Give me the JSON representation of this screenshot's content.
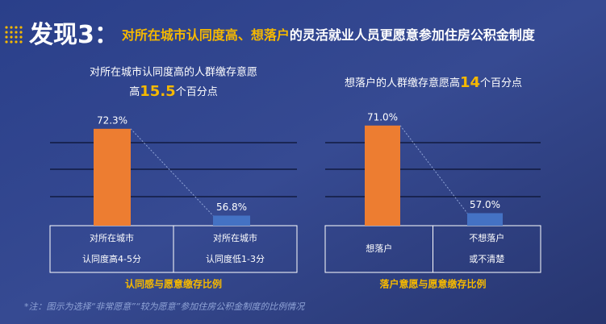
{
  "header": {
    "title_prefix": "发现3：",
    "title_highlight": "对所在城市认同度高、想落户",
    "title_rest": "的灵活就业人员更愿意参加住房公积金制度"
  },
  "chart_data": [
    {
      "type": "bar",
      "subtitle": "对所在城市认同度高的人群缴存意愿",
      "subtitle_lead": "高",
      "subtitle_highlight": 15.5,
      "subtitle_tail": "个百分点",
      "categories": [
        [
          "对所在城市",
          "认同度高4-5分"
        ],
        [
          "对所在城市",
          "认同度低1-3分"
        ]
      ],
      "values": [
        72.3,
        56.8
      ],
      "value_labels": [
        "72.3%",
        "56.8%"
      ],
      "colors": [
        "#ed7d31",
        "#4472c4"
      ],
      "ylim": [
        55,
        74
      ],
      "caption": "认同感与愿意缴存比例"
    },
    {
      "type": "bar",
      "subtitle_lead": "想落户的人群缴存意愿高",
      "subtitle_highlight": 14,
      "subtitle_tail": "个百分点",
      "categories": [
        [
          "想落户"
        ],
        [
          "不想落户",
          "或不清楚"
        ]
      ],
      "values": [
        71.0,
        57.0
      ],
      "value_labels": [
        "71.0%",
        "57.0%"
      ],
      "colors": [
        "#ed7d31",
        "#4472c4"
      ],
      "ylim": [
        55,
        72
      ],
      "caption": "落户意愿与愿意缴存比例"
    }
  ],
  "note": "*注：图示为选择“非常愿意”“较为愿意”参加住房公积金制度的比例情况"
}
